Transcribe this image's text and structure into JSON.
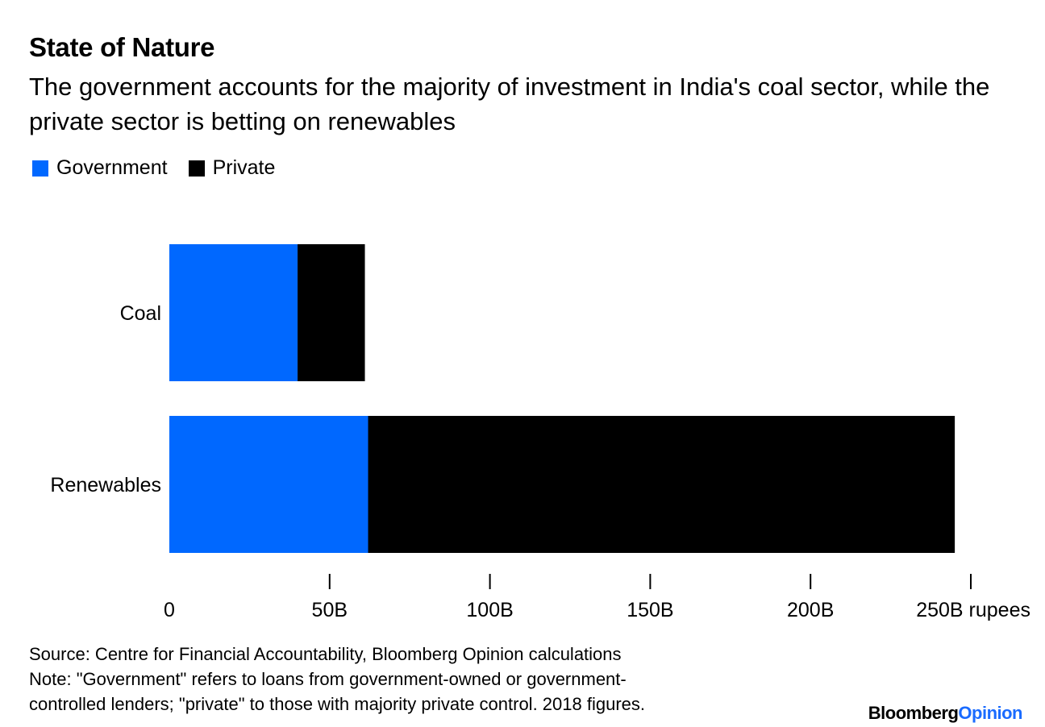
{
  "title": "State of Nature",
  "subtitle": "The government accounts for the majority of investment in India's coal sector, while the private sector is betting on renewables",
  "legend": [
    {
      "label": "Government",
      "color": "#0068ff"
    },
    {
      "label": "Private",
      "color": "#000000"
    }
  ],
  "chart_data": {
    "type": "bar",
    "orientation": "horizontal",
    "stacked": true,
    "categories": [
      "Coal",
      "Renewables"
    ],
    "series": [
      {
        "name": "Government",
        "values": [
          40,
          62
        ],
        "color": "#0068ff"
      },
      {
        "name": "Private",
        "values": [
          21,
          183
        ],
        "color": "#000000"
      }
    ],
    "xlim": [
      0,
      250
    ],
    "x_ticks": [
      0,
      50,
      100,
      150,
      200,
      250
    ],
    "x_tick_labels": [
      "0",
      "50B",
      "100B",
      "150B",
      "200B",
      "250B rupees"
    ],
    "grid": false,
    "legend_position": "top-left"
  },
  "footer": {
    "source": "Source: Centre for Financial Accountability, Bloomberg Opinion calculations",
    "note_line1": "Note: \"Government\" refers to loans from government-owned or government-",
    "note_line2": "controlled lenders; \"private\" to those with majority private control. 2018 figures."
  },
  "brand": {
    "part1": "Bloomberg",
    "part2": "Opinion"
  }
}
